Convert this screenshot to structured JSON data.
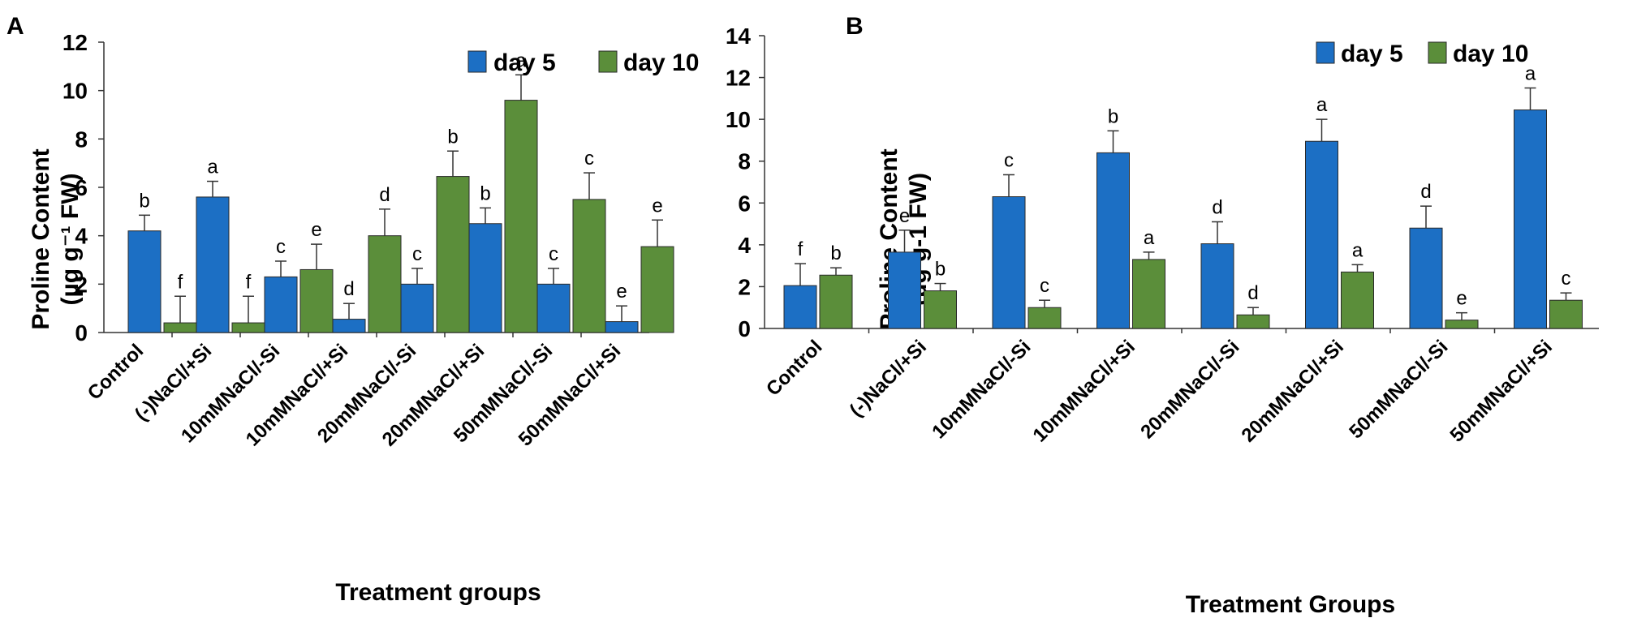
{
  "colors": {
    "day5": "#1c6fc4",
    "day10": "#5b8e3a",
    "bar_edge": "#2a2a2a"
  },
  "chart_data": [
    {
      "panel": "A",
      "type": "bar",
      "ylim": [
        0,
        12
      ],
      "yticks": [
        "0",
        "2",
        "4",
        "6",
        "8",
        "10",
        "12"
      ],
      "ylabel_line1": "Proline Content",
      "ylabel_line2": "(µg g⁻¹ FW)",
      "xlabel": "Treatment groups",
      "legend": [
        "day 5",
        "day 10"
      ],
      "categories": [
        "Control",
        "(-)NaCl/+Si",
        "10mMNaCl/-Si",
        "10mMNaCl/+Si",
        "20mMNaCl/-Si",
        "20mMNaCl/+Si",
        "50mMNaCl/-Si",
        "50mMNaCl/+Si"
      ],
      "series": [
        {
          "name": "day 5",
          "values": [
            4.2,
            5.6,
            2.3,
            0.55,
            2.0,
            4.5,
            2.0,
            0.45
          ],
          "errors": [
            0.65,
            0.65,
            0.65,
            0.65,
            0.65,
            0.65,
            0.65,
            0.65
          ],
          "letters": [
            "b",
            "a",
            "c",
            "d",
            "c",
            "b",
            "c",
            "e"
          ]
        },
        {
          "name": "day 10",
          "values": [
            0.4,
            0.4,
            2.6,
            4.0,
            6.45,
            9.6,
            5.5,
            3.55
          ],
          "errors": [
            1.1,
            1.1,
            1.05,
            1.1,
            1.05,
            1.05,
            1.1,
            1.1
          ],
          "letters": [
            "f",
            "f",
            "e",
            "d",
            "b",
            "a",
            "c",
            "e"
          ]
        }
      ]
    },
    {
      "panel": "B",
      "type": "bar",
      "ylim": [
        0,
        14
      ],
      "yticks": [
        "0",
        "2",
        "4",
        "6",
        "8",
        "10",
        "12",
        "14"
      ],
      "ylabel_line1": "Proline Content",
      "ylabel_line2": "(µg g-1 FW)",
      "xlabel": "Treatment Groups",
      "legend": [
        "day 5",
        "day 10"
      ],
      "categories": [
        "Control",
        "(-)NaCl/+Si",
        "10mMNaCl/-Si",
        "10mMNaCl/+Si",
        "20mMNaCl/-Si",
        "20mMNaCl/+Si",
        "50mMNaCl/-Si",
        "50mMNaCl/+Si"
      ],
      "series": [
        {
          "name": "day 5",
          "values": [
            2.05,
            3.65,
            6.3,
            8.4,
            4.05,
            8.95,
            4.8,
            10.45
          ],
          "errors": [
            1.05,
            1.05,
            1.05,
            1.05,
            1.05,
            1.05,
            1.05,
            1.05
          ],
          "letters": [
            "f",
            "e",
            "c",
            "b",
            "d",
            "a",
            "d",
            "a"
          ]
        },
        {
          "name": "day 10",
          "values": [
            2.55,
            1.8,
            1.0,
            3.3,
            0.65,
            2.7,
            0.4,
            1.35
          ],
          "errors": [
            0.35,
            0.35,
            0.35,
            0.35,
            0.35,
            0.35,
            0.35,
            0.35
          ],
          "letters": [
            "b",
            "b",
            "c",
            "a",
            "d",
            "a",
            "e",
            "c"
          ]
        }
      ]
    }
  ]
}
